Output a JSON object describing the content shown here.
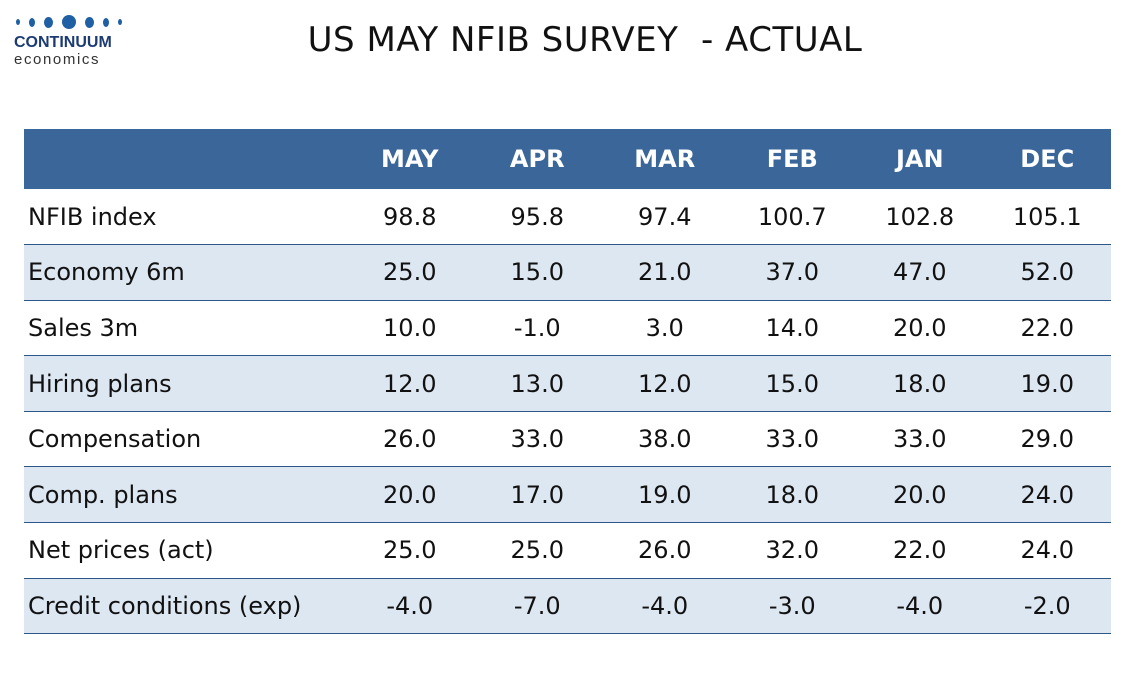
{
  "logo": {
    "name": "CONTINUUM",
    "sub": "economics"
  },
  "title": "US MAY NFIB SURVEY  - ACTUAL",
  "colors": {
    "header_bg": "#3a6699",
    "row_alt_bg": "#dde7f2",
    "rule": "#2e568a",
    "logo_blue": "#1f5fa3"
  },
  "chart_data": {
    "type": "table",
    "columns": [
      "",
      "MAY",
      "APR",
      "MAR",
      "FEB",
      "JAN",
      "DEC"
    ],
    "rows": [
      [
        "NFIB index",
        "98.8",
        "95.8",
        "97.4",
        "100.7",
        "102.8",
        "105.1"
      ],
      [
        "Economy 6m",
        "25.0",
        "15.0",
        "21.0",
        "37.0",
        "47.0",
        "52.0"
      ],
      [
        "Sales 3m",
        "10.0",
        "-1.0",
        "3.0",
        "14.0",
        "20.0",
        "22.0"
      ],
      [
        "Hiring plans",
        "12.0",
        "13.0",
        "12.0",
        "15.0",
        "18.0",
        "19.0"
      ],
      [
        "Compensation",
        "26.0",
        "33.0",
        "38.0",
        "33.0",
        "33.0",
        "29.0"
      ],
      [
        "Comp. plans",
        "20.0",
        "17.0",
        "19.0",
        "18.0",
        "20.0",
        "24.0"
      ],
      [
        "Net prices (act)",
        "25.0",
        "25.0",
        "26.0",
        "32.0",
        "22.0",
        "24.0"
      ],
      [
        "Credit conditions (exp)",
        "-4.0",
        "-7.0",
        "-4.0",
        "-3.0",
        "-4.0",
        "-2.0"
      ]
    ]
  }
}
